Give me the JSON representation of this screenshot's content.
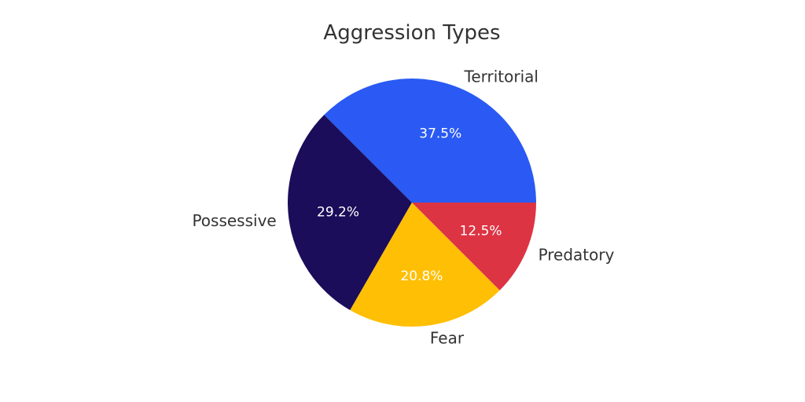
{
  "chart_data": {
    "type": "pie",
    "title": "Aggression Types",
    "slices": [
      {
        "label": "Territorial",
        "value": 37.5,
        "display": "37.5%",
        "color": "#2a5af3"
      },
      {
        "label": "Possessive",
        "value": 29.2,
        "display": "29.2%",
        "color": "#1b0d5a"
      },
      {
        "label": "Fear",
        "value": 20.8,
        "display": "20.8%",
        "color": "#ffbf05"
      },
      {
        "label": "Predatory",
        "value": 12.5,
        "display": "12.5%",
        "color": "#dd3444"
      }
    ],
    "start_angle_deg": 0,
    "direction": "counterclockwise"
  }
}
